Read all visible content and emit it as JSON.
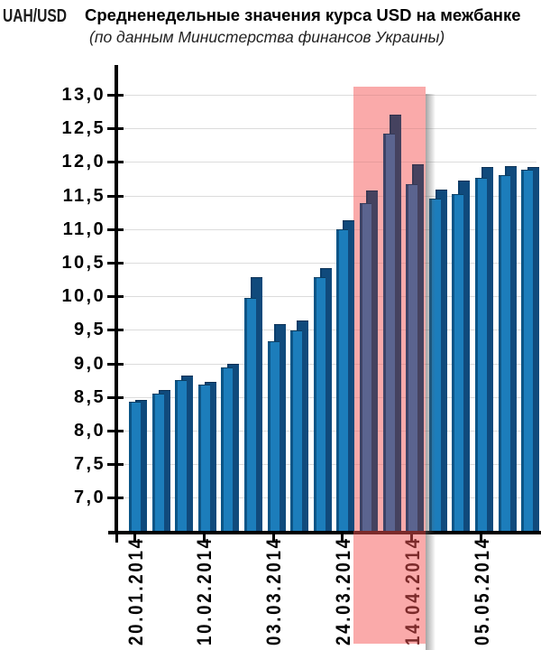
{
  "header": {
    "axis_unit": "UAH/USD",
    "title": "Средненедельные значения курса USD на межбанке",
    "subtitle": "(по данным Министерства финансов Украины)"
  },
  "chart_data": {
    "type": "bar",
    "title": "Средненедельные значения курса USD на межбанке",
    "subtitle": "(по данным Министерства финансов Украины)",
    "ylabel": "UAH/USD",
    "ylim": [
      6.5,
      13.3
    ],
    "grid": true,
    "legend": false,
    "y_ticks": [
      13.0,
      12.5,
      12.0,
      11.5,
      11.0,
      10.5,
      10.0,
      9.5,
      9.0,
      8.5,
      8.0,
      7.5,
      7.0
    ],
    "y_tick_labels": [
      "13,0",
      "12,5",
      "12,0",
      "11,5",
      "11,0",
      "10,5",
      "10,0",
      "9,5",
      "9,0",
      "8,5",
      "8,0",
      "7,5",
      "7,0"
    ],
    "x_tick_labels": [
      "20.01.2014",
      "10.02.2014",
      "03.03.2014",
      "24.03.2014",
      "14.04.2014",
      "05.05.2014"
    ],
    "x_ticks_every_n_bars": 3,
    "series": [
      {
        "name": "weekly-average-front",
        "values": [
          8.43,
          8.55,
          8.76,
          8.68,
          8.94,
          9.97,
          9.33,
          9.49,
          10.29,
          11.0,
          11.39,
          12.42,
          11.67,
          11.45,
          11.52,
          11.77,
          11.81,
          11.88
        ]
      },
      {
        "name": "weekly-peak-back",
        "values": [
          8.46,
          8.61,
          8.82,
          8.72,
          9.0,
          10.29,
          9.58,
          9.64,
          10.42,
          11.13,
          11.57,
          12.7,
          11.97,
          11.59,
          11.72,
          11.92,
          11.94,
          11.92
        ]
      }
    ],
    "highlight": {
      "start_bar_index": 10,
      "end_bar_index": 12
    },
    "colors": {
      "bar_front": "#1C7DBB",
      "bar_front_edge": "#0B5587",
      "bar_front_cap": "#0A3E63",
      "bar_back": "#104A7C",
      "bar_back_edge": "#0B3E6B",
      "bar_back_cap": "#0A3055",
      "band_pink": "#FAAAAA",
      "band_front": "#5B648F",
      "band_front_edge": "#3E4366",
      "band_front_cap": "#343A59",
      "band_back": "#45425F",
      "band_back_edge": "#3A3A55",
      "band_back_cap": "#30304A",
      "band_text_maroon": "#7B2A2A",
      "gridline": "#DCDCDC",
      "gridline_on_band": "#E79C9C",
      "axis": "#000000"
    }
  }
}
